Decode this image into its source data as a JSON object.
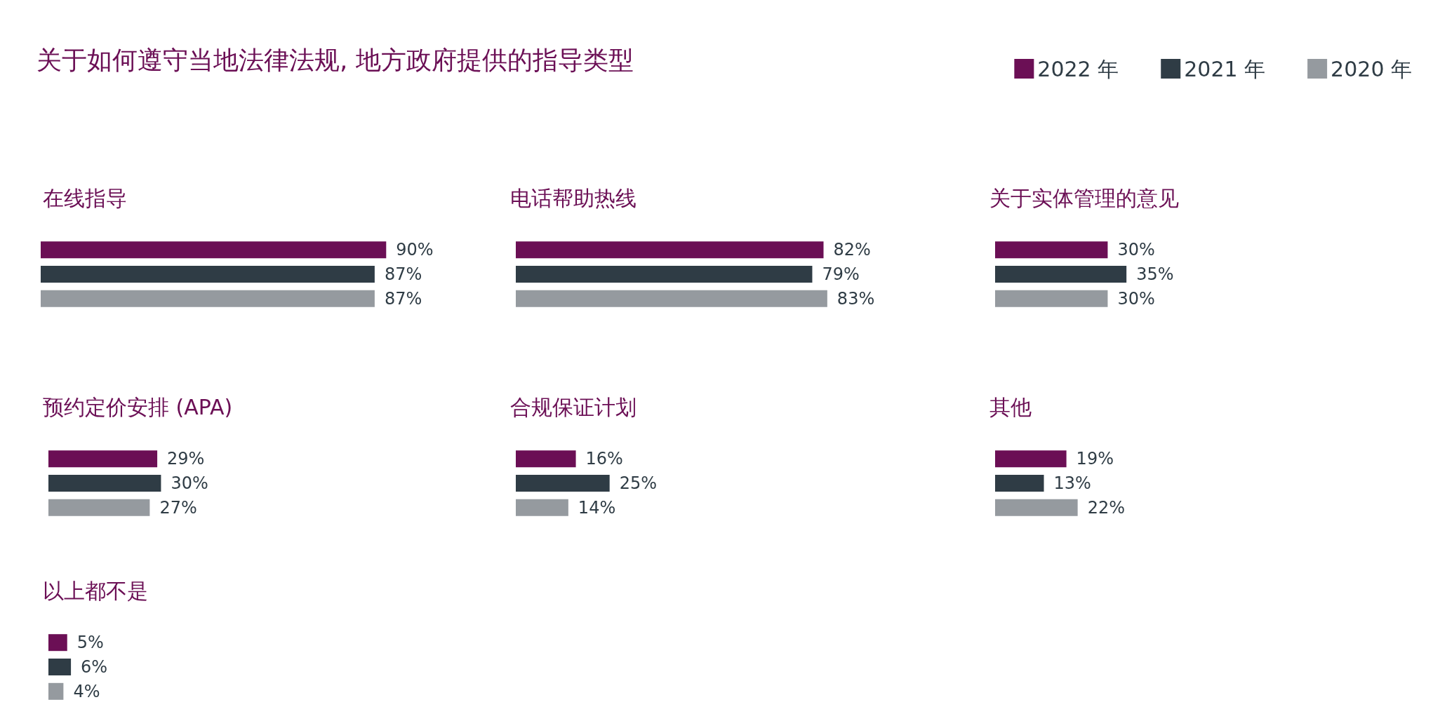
{
  "chart_data": [
    {
      "type": "other",
      "title": "关于如何遵守当地法律法规, 地方政府提供的指导类型"
    },
    {
      "type": "bar",
      "orientation": "horizontal",
      "title": "在线指导",
      "categories": [
        null
      ],
      "legend": "top right",
      "series": [
        {
          "name": "2022 年",
          "color": "#6b0f55",
          "values": [
            90
          ],
          "value_labels": [
            "90%"
          ]
        },
        {
          "name": "2021 年",
          "color": "#2f3c45",
          "values": [
            87
          ],
          "value_labels": [
            "87%"
          ]
        },
        {
          "name": "2020 年",
          "color": "#959a9f",
          "values": [
            87
          ],
          "value_labels": [
            "87%"
          ]
        }
      ]
    },
    {
      "type": "bar",
      "orientation": "horizontal",
      "title": "电话帮助热线",
      "categories": [
        null
      ],
      "series": [
        {
          "color": "#6b0f55",
          "values": [
            82
          ],
          "value_labels": [
            "82%"
          ]
        },
        {
          "color": "#2f3c45",
          "values": [
            79
          ],
          "value_labels": [
            "79%"
          ]
        },
        {
          "color": "#959a9f",
          "values": [
            83
          ],
          "value_labels": [
            "83%"
          ]
        }
      ]
    },
    {
      "type": "bar",
      "orientation": "horizontal",
      "title": "关于实体管理的意见",
      "categories": [
        null
      ],
      "series": [
        {
          "color": "#6b0f55",
          "values": [
            30
          ],
          "value_labels": [
            "30%"
          ]
        },
        {
          "color": "#2f3c45",
          "values": [
            35
          ],
          "value_labels": [
            "35%"
          ]
        },
        {
          "color": "#959a9f",
          "values": [
            30
          ],
          "value_labels": [
            "30%"
          ]
        }
      ]
    },
    {
      "type": "bar",
      "orientation": "horizontal",
      "title": "预约定价安排 (APA)",
      "categories": [
        null
      ],
      "series": [
        {
          "color": "#6b0f55",
          "values": [
            29
          ],
          "value_labels": [
            "29%"
          ]
        },
        {
          "color": "#2f3c45",
          "values": [
            30
          ],
          "value_labels": [
            "30%"
          ]
        },
        {
          "color": "#959a9f",
          "values": [
            27
          ],
          "value_labels": [
            "27%"
          ]
        }
      ]
    },
    {
      "type": "bar",
      "orientation": "horizontal",
      "title": "合规保证计划",
      "categories": [
        null
      ],
      "series": [
        {
          "color": "#6b0f55",
          "values": [
            16
          ],
          "value_labels": [
            "16%"
          ]
        },
        {
          "color": "#2f3c45",
          "values": [
            25
          ],
          "value_labels": [
            "25%"
          ]
        },
        {
          "color": "#959a9f",
          "values": [
            14
          ],
          "value_labels": [
            "14%"
          ]
        }
      ]
    },
    {
      "type": "bar",
      "orientation": "horizontal",
      "title": "其他",
      "categories": [
        null
      ],
      "series": [
        {
          "color": "#6b0f55",
          "values": [
            19
          ],
          "value_labels": [
            "19%"
          ]
        },
        {
          "color": "#2f3c45",
          "values": [
            13
          ],
          "value_labels": [
            "13%"
          ]
        },
        {
          "color": "#959a9f",
          "values": [
            22
          ],
          "value_labels": [
            "22%"
          ]
        }
      ]
    },
    {
      "type": "bar",
      "orientation": "horizontal",
      "title": "以上都不是",
      "categories": [
        null
      ],
      "series": [
        {
          "color": "#6b0f55",
          "values": [
            5
          ],
          "value_labels": [
            "5%"
          ]
        },
        {
          "color": "#2f3c45",
          "values": [
            6
          ],
          "value_labels": [
            "6%"
          ]
        },
        {
          "color": "#959a9f",
          "values": [
            4
          ],
          "value_labels": [
            "4%"
          ]
        }
      ]
    }
  ]
}
